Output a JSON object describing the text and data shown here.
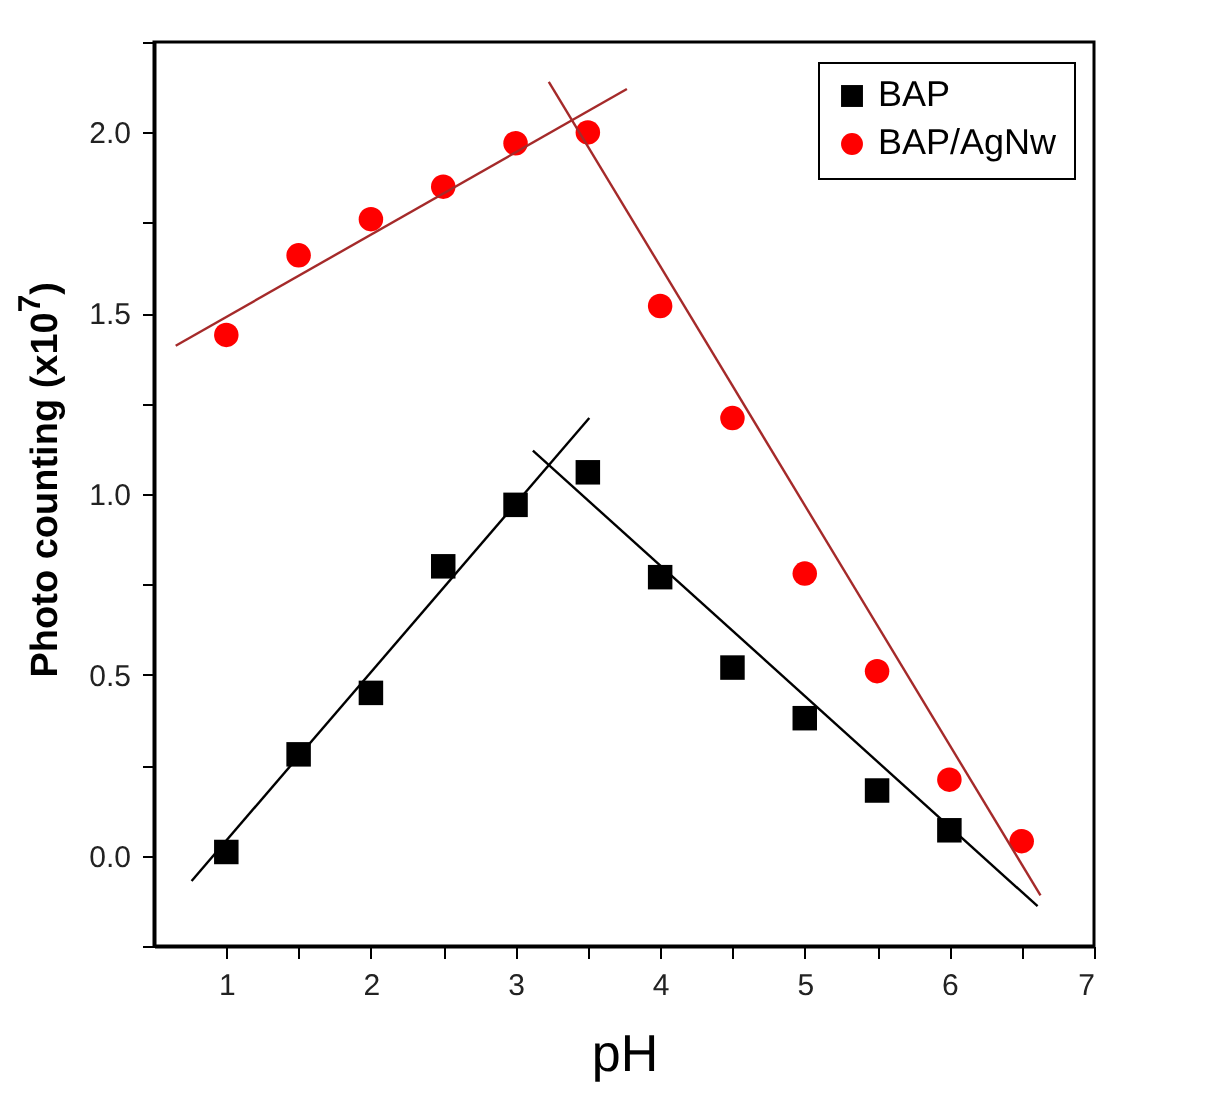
{
  "chart_data": {
    "type": "scatter",
    "xlabel": "pH",
    "ylabel": "Photo counting (x10$^{7}$)",
    "x": [
      1,
      1.5,
      2,
      2.5,
      3,
      3.5,
      4,
      4.5,
      5,
      5.5,
      6,
      6.5
    ],
    "series": [
      {
        "name": "BAP",
        "color": "#000000",
        "marker": "square",
        "values": [
          0.01,
          0.28,
          0.45,
          0.8,
          0.97,
          1.06,
          0.77,
          0.52,
          0.38,
          0.18,
          0.07,
          null
        ]
      },
      {
        "name": "BAP/AgNw",
        "color": "#ff0000",
        "marker": "circle",
        "values": [
          1.44,
          1.66,
          1.76,
          1.85,
          1.97,
          2.0,
          1.52,
          1.21,
          0.78,
          0.51,
          0.21,
          0.04
        ]
      },
      {
        "type": "line",
        "color": "#000000",
        "x": [
          0.76,
          3.51
        ],
        "values": [
          -0.07,
          1.21
        ]
      },
      {
        "type": "line",
        "color": "#000000",
        "x": [
          3.12,
          6.61
        ],
        "values": [
          1.12,
          -0.14
        ]
      },
      {
        "type": "line",
        "color": "#a52a2a",
        "x": [
          0.65,
          3.77
        ],
        "values": [
          1.41,
          2.12
        ]
      },
      {
        "type": "line",
        "color": "#a52a2a",
        "x": [
          3.23,
          6.63
        ],
        "values": [
          2.14,
          -0.11
        ]
      }
    ],
    "xlim": [
      0.5,
      7
    ],
    "ylim": [
      -0.25,
      2.25
    ],
    "xticks": [
      1,
      {
        "value": 1.5,
        "label": null
      },
      2,
      {
        "value": 2.5,
        "label": null
      },
      3,
      {
        "value": 3.5,
        "label": null
      },
      4,
      {
        "value": 4.5,
        "label": null
      },
      5,
      {
        "value": 5.5,
        "label": null
      },
      6,
      {
        "value": 6.5,
        "label": null
      },
      7
    ],
    "yticks": [
      {
        "value": -0.25,
        "label": null
      },
      {
        "value": 0,
        "label": "0.0"
      },
      {
        "value": 0.25,
        "label": null
      },
      {
        "value": 0.5,
        "label": "0.5"
      },
      {
        "value": 0.75,
        "label": null
      },
      {
        "value": 1,
        "label": "1.0"
      },
      {
        "value": 1.25,
        "label": null
      },
      {
        "value": 1.5,
        "label": "1.5"
      },
      {
        "value": 1.75,
        "label": null
      },
      {
        "value": 2,
        "label": "2.0"
      },
      {
        "value": 2.25,
        "label": null
      }
    ],
    "grid": false,
    "legend": "top right"
  }
}
